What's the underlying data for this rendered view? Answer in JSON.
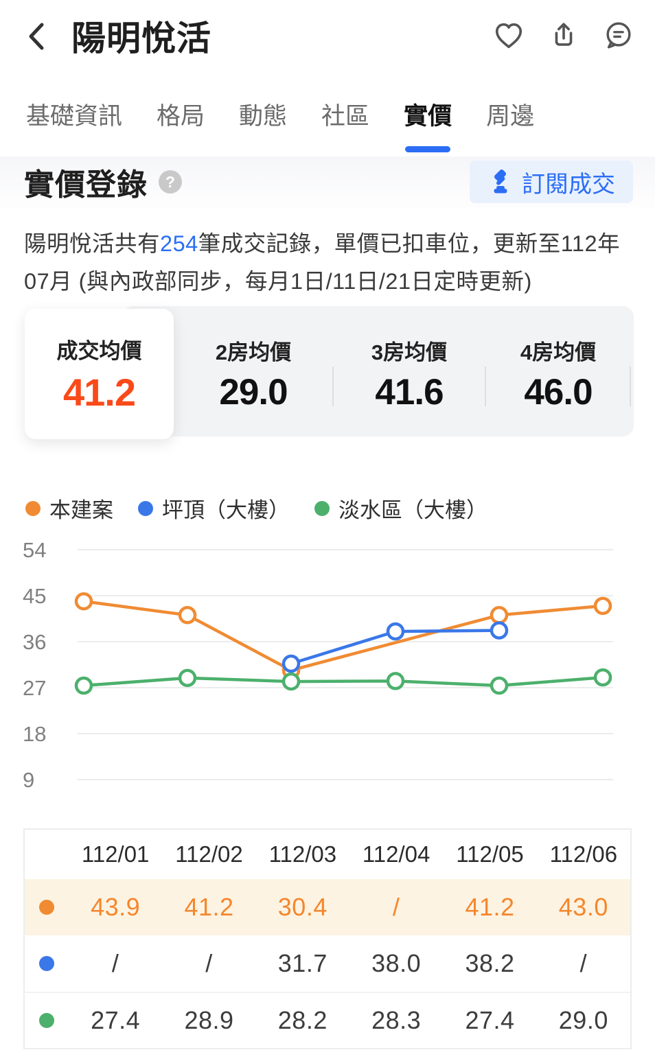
{
  "colors": {
    "accent": "#2b6ef5",
    "accent_bg": "#e9f1fd",
    "highlight_number": "#fa4a1a",
    "series_orange": "#f08b33",
    "series_blue": "#3a77e8",
    "series_green": "#4cb06c",
    "card_strip_bg": "#f2f3f5",
    "row_highlight_bg": "#fdf3e2",
    "grid_line": "#ececec",
    "axis_label": "#808080",
    "tab_inactive": "#6b6b6b",
    "text_primary": "#1f1f1f",
    "table_text": "#3c3c3c",
    "table_orange_text": "#f5862c",
    "icon_gray": "#555555",
    "help_bg": "#c9c9c9",
    "table_border": "#ededed"
  },
  "header": {
    "title": "陽明悅活"
  },
  "tabs": {
    "items": [
      {
        "label": "基礎資訊"
      },
      {
        "label": "格局"
      },
      {
        "label": "動態"
      },
      {
        "label": "社區"
      },
      {
        "label": "實價"
      },
      {
        "label": "周邊"
      }
    ],
    "active": "實價"
  },
  "section": {
    "title": "實價登錄",
    "help_glyph": "?",
    "subscribe_label": "訂閱成交"
  },
  "summary": {
    "pre": "陽明悅活共有",
    "count": "254",
    "post": "筆成交記錄，單價已扣車位，更新至112年07月 (與內政部同步，每月1日/11日/21日定時更新)"
  },
  "cards": {
    "items": [
      {
        "label": "成交均價",
        "value": "41.2"
      },
      {
        "label": "2房均價",
        "value": "29.0"
      },
      {
        "label": "3房均價",
        "value": "41.6"
      },
      {
        "label": "4房均價",
        "value": "46.0"
      }
    ]
  },
  "chart_data": {
    "type": "line",
    "x": [
      "112/01",
      "112/02",
      "112/03",
      "112/04",
      "112/05",
      "112/06"
    ],
    "series": [
      {
        "name": "本建案",
        "color": "#f08b33",
        "values": [
          43.9,
          41.2,
          30.4,
          null,
          41.2,
          43.0
        ]
      },
      {
        "name": "坪頂（大樓）",
        "color": "#3a77e8",
        "values": [
          null,
          null,
          31.7,
          38.0,
          38.2,
          null
        ]
      },
      {
        "name": "淡水區（大樓）",
        "color": "#4cb06c",
        "values": [
          27.4,
          28.9,
          28.2,
          28.3,
          27.4,
          29.0
        ]
      }
    ],
    "yticks": [
      54,
      45,
      36,
      27,
      18,
      9
    ],
    "ylim": [
      9,
      54
    ],
    "grid": true,
    "legend_position": "top-left",
    "marker": "open-circle"
  },
  "table": {
    "columns": [
      "112/01",
      "112/02",
      "112/03",
      "112/04",
      "112/05",
      "112/06"
    ],
    "rows": [
      {
        "series": "本建案",
        "color": "#f08b33",
        "text_color": "#f5862c",
        "row_bg": "#fdf3e2",
        "values": [
          "43.9",
          "41.2",
          "30.4",
          "/",
          "41.2",
          "43.0"
        ]
      },
      {
        "series": "坪頂（大樓）",
        "color": "#3a77e8",
        "text_color": "#3c3c3c",
        "row_bg": "",
        "values": [
          "/",
          "/",
          "31.7",
          "38.0",
          "38.2",
          "/"
        ]
      },
      {
        "series": "淡水區（大樓）",
        "color": "#4cb06c",
        "text_color": "#3c3c3c",
        "row_bg": "",
        "values": [
          "27.4",
          "28.9",
          "28.2",
          "28.3",
          "27.4",
          "29.0"
        ]
      }
    ]
  }
}
